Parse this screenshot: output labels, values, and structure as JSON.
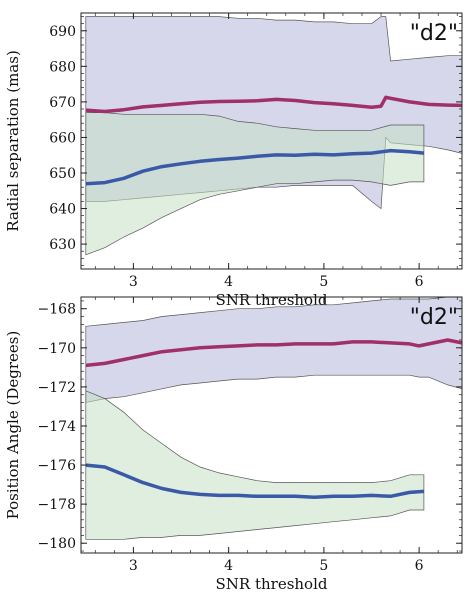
{
  "chart_data": [
    {
      "type": "area",
      "annotation": "\"d2\"",
      "xlabel": "SNR threshold",
      "ylabel": "Radial separation (mas)",
      "xlim": [
        2.45,
        6.45
      ],
      "ylim": [
        623,
        695
      ],
      "xticks": [
        3,
        4,
        5,
        6
      ],
      "yticks": [
        630,
        640,
        650,
        660,
        670,
        680,
        690
      ],
      "x_tick_labels": [
        "3",
        "4",
        "5",
        "6"
      ],
      "y_tick_labels": [
        "630",
        "640",
        "650",
        "660",
        "670",
        "680",
        "690"
      ],
      "series": [
        {
          "color": "#a0306a",
          "band_color": "#b6b6dc",
          "x": [
            2.5,
            2.7,
            2.9,
            3.1,
            3.3,
            3.5,
            3.7,
            3.9,
            4.1,
            4.3,
            4.5,
            4.7,
            4.9,
            5.1,
            5.3,
            5.5,
            5.6,
            5.65,
            5.7,
            5.9,
            6.1,
            6.3,
            6.45
          ],
          "values": [
            667.7,
            667.3,
            667.8,
            668.6,
            669.0,
            669.5,
            669.9,
            670.1,
            670.2,
            670.3,
            670.7,
            670.4,
            669.8,
            669.5,
            669.0,
            668.5,
            668.8,
            671.3,
            671.0,
            670.0,
            669.3,
            669.1,
            669.0
          ],
          "upper": [
            694,
            694,
            694,
            694,
            694,
            694,
            694,
            694,
            693.5,
            693.5,
            693,
            693,
            692.5,
            692.5,
            692,
            692,
            694,
            694,
            681.5,
            682,
            682.5,
            683,
            683
          ],
          "lower": [
            642,
            642,
            642.5,
            643,
            643.5,
            644,
            644.5,
            645,
            645.5,
            646,
            646,
            646.5,
            646.5,
            646.5,
            646.5,
            642,
            640,
            660,
            658.5,
            658,
            657.5,
            656.5,
            655.5
          ]
        },
        {
          "color": "#3a5aa8",
          "band_color": "#c4e0c4",
          "x": [
            2.5,
            2.7,
            2.9,
            3.1,
            3.3,
            3.5,
            3.7,
            3.9,
            4.1,
            4.3,
            4.5,
            4.7,
            4.9,
            5.1,
            5.3,
            5.5,
            5.7,
            5.9,
            6.05
          ],
          "values": [
            647.0,
            647.3,
            648.5,
            650.5,
            651.8,
            652.6,
            653.3,
            653.8,
            654.2,
            654.7,
            655.1,
            655.0,
            655.3,
            655.1,
            655.4,
            655.6,
            656.3,
            656.0,
            655.6
          ],
          "upper": [
            667,
            667,
            666.5,
            666.5,
            666.5,
            666.5,
            666.5,
            666,
            664.5,
            664,
            663,
            662.5,
            662,
            662,
            662,
            662,
            663.5,
            663.5,
            663.5
          ],
          "lower": [
            627,
            629,
            632,
            634.5,
            637.5,
            640,
            642.5,
            644,
            645,
            646,
            647,
            647,
            647.5,
            648,
            648,
            647.5,
            646.5,
            647.5,
            647.5
          ]
        }
      ]
    },
    {
      "type": "area",
      "annotation": "\"d2\"",
      "xlabel": "SNR threshold",
      "ylabel": "Position Angle (Degrees)",
      "xlim": [
        2.45,
        6.45
      ],
      "ylim": [
        -180.5,
        -167.4
      ],
      "xticks": [
        3,
        4,
        5,
        6
      ],
      "yticks": [
        -180,
        -178,
        -176,
        -174,
        -172,
        -170,
        -168
      ],
      "x_tick_labels": [
        "3",
        "4",
        "5",
        "6"
      ],
      "y_tick_labels": [
        "−180",
        "−178",
        "−176",
        "−174",
        "−172",
        "−170",
        "−168"
      ],
      "series": [
        {
          "color": "#a0306a",
          "band_color": "#b6b6dc",
          "x": [
            2.5,
            2.7,
            2.9,
            3.1,
            3.3,
            3.5,
            3.7,
            3.9,
            4.1,
            4.3,
            4.5,
            4.7,
            4.9,
            5.1,
            5.3,
            5.5,
            5.7,
            5.9,
            6.0,
            6.1,
            6.3,
            6.45
          ],
          "values": [
            -170.9,
            -170.8,
            -170.6,
            -170.4,
            -170.2,
            -170.1,
            -170.0,
            -169.95,
            -169.9,
            -169.85,
            -169.85,
            -169.8,
            -169.8,
            -169.8,
            -169.7,
            -169.7,
            -169.75,
            -169.8,
            -169.9,
            -169.8,
            -169.6,
            -169.75
          ],
          "upper": [
            -168.9,
            -168.8,
            -168.7,
            -168.6,
            -168.4,
            -168.3,
            -168.2,
            -168.1,
            -168.0,
            -168.0,
            -167.9,
            -167.9,
            -167.8,
            -167.8,
            -167.7,
            -167.6,
            -167.5,
            -167.5,
            -167.5,
            -167.5,
            -167.4,
            -167.4
          ],
          "lower": [
            -172.8,
            -172.6,
            -172.5,
            -172.3,
            -172.1,
            -171.9,
            -171.8,
            -171.7,
            -171.6,
            -171.6,
            -171.5,
            -171.5,
            -171.4,
            -171.4,
            -171.4,
            -171.4,
            -171.4,
            -171.4,
            -171.5,
            -171.5,
            -171.9,
            -172.1
          ]
        },
        {
          "color": "#3a5aa8",
          "band_color": "#c4e0c4",
          "x": [
            2.5,
            2.7,
            2.9,
            3.1,
            3.3,
            3.5,
            3.7,
            3.9,
            4.1,
            4.3,
            4.5,
            4.7,
            4.9,
            5.1,
            5.3,
            5.5,
            5.7,
            5.9,
            6.05
          ],
          "values": [
            -176.0,
            -176.1,
            -176.5,
            -176.9,
            -177.2,
            -177.4,
            -177.5,
            -177.55,
            -177.55,
            -177.6,
            -177.6,
            -177.6,
            -177.65,
            -177.6,
            -177.6,
            -177.55,
            -177.6,
            -177.4,
            -177.35
          ],
          "upper": [
            -172.2,
            -172.6,
            -173.3,
            -174.2,
            -174.9,
            -175.6,
            -176.1,
            -176.4,
            -176.6,
            -176.8,
            -176.9,
            -176.9,
            -176.9,
            -176.9,
            -176.9,
            -176.9,
            -176.8,
            -176.5,
            -176.5
          ],
          "lower": [
            -179.8,
            -179.8,
            -179.8,
            -179.7,
            -179.7,
            -179.6,
            -179.6,
            -179.5,
            -179.4,
            -179.3,
            -179.2,
            -179.1,
            -179.0,
            -178.9,
            -178.8,
            -178.7,
            -178.6,
            -178.3,
            -178.3
          ]
        }
      ]
    }
  ]
}
